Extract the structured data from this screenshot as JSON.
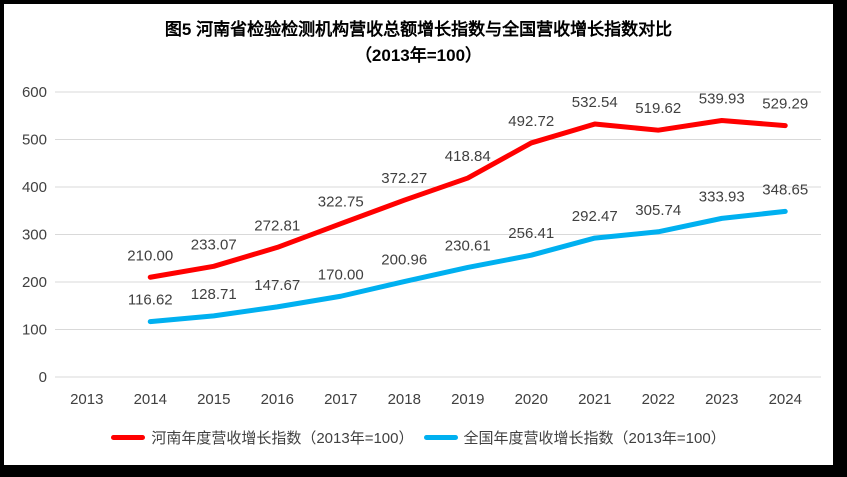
{
  "chart_data": {
    "type": "line",
    "title_line1": "图5  河南省检验检测机构营收总额增长指数与全国营收增长指数对比",
    "title_line2": "（2013年=100）",
    "categories": [
      "2013",
      "2014",
      "2015",
      "2016",
      "2017",
      "2018",
      "2019",
      "2020",
      "2021",
      "2022",
      "2023",
      "2024"
    ],
    "series": [
      {
        "name": "河南年度营收增长指数（2013年=100）",
        "color": "#FF0000",
        "values": [
          null,
          210.0,
          233.07,
          272.81,
          322.75,
          372.27,
          418.84,
          492.72,
          532.54,
          519.62,
          539.93,
          529.29
        ]
      },
      {
        "name": "全国年度营收增长指数（2013年=100）",
        "color": "#00B0F0",
        "values": [
          null,
          116.62,
          128.71,
          147.67,
          170.0,
          200.96,
          230.61,
          256.41,
          292.47,
          305.74,
          333.93,
          348.65
        ]
      }
    ],
    "ylim": [
      0,
      600
    ],
    "yticks": [
      0,
      100,
      200,
      300,
      400,
      500,
      600
    ],
    "grid": true,
    "legend_position": "bottom",
    "data_labels": true,
    "colors": {
      "grid": "#D9D9D9",
      "axis_text": "#404040",
      "data_label_text": "#404040",
      "title_text": "#000000",
      "frame_border": "#000000",
      "background": "#FFFFFF"
    }
  }
}
